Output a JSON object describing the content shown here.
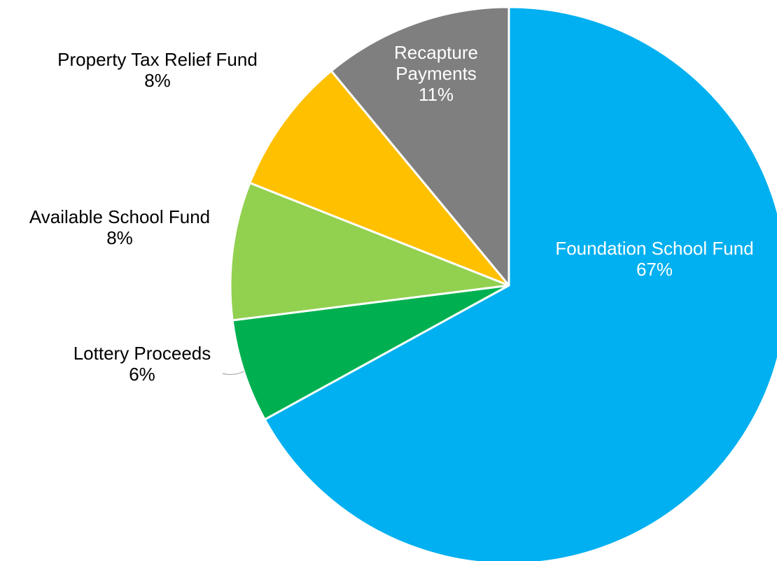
{
  "chart_data": {
    "type": "pie",
    "title": "",
    "start_angle_deg": 0,
    "direction": "clockwise",
    "slices": [
      {
        "name": "Foundation School Fund",
        "value": 67,
        "percent_label": "67%",
        "color": "#00B0F0",
        "label_lines": [
          "Foundation School Fund",
          "67%"
        ],
        "label_color": "#ffffff",
        "label_placement": "inside"
      },
      {
        "name": "Lottery Proceeds",
        "value": 6,
        "percent_label": "6%",
        "color": "#00B050",
        "label_lines": [
          "Lottery Proceeds",
          "6%"
        ],
        "label_color": "#000000",
        "label_placement": "outside",
        "leader_line": true
      },
      {
        "name": "Available School Fund",
        "value": 8,
        "percent_label": "8%",
        "color": "#92D050",
        "label_lines": [
          "Available School Fund",
          "8%"
        ],
        "label_color": "#000000",
        "label_placement": "outside"
      },
      {
        "name": "Property Tax Relief Fund",
        "value": 8,
        "percent_label": "8%",
        "color": "#FFC000",
        "label_lines": [
          "Property Tax Relief Fund",
          "8%"
        ],
        "label_color": "#000000",
        "label_placement": "outside"
      },
      {
        "name": "Recapture Payments",
        "value": 11,
        "percent_label": "11%",
        "color": "#7F7F7F",
        "label_lines": [
          "Recapture",
          "Payments",
          "11%"
        ],
        "label_color": "#ffffff",
        "label_placement": "inside"
      }
    ],
    "legend": "none"
  }
}
